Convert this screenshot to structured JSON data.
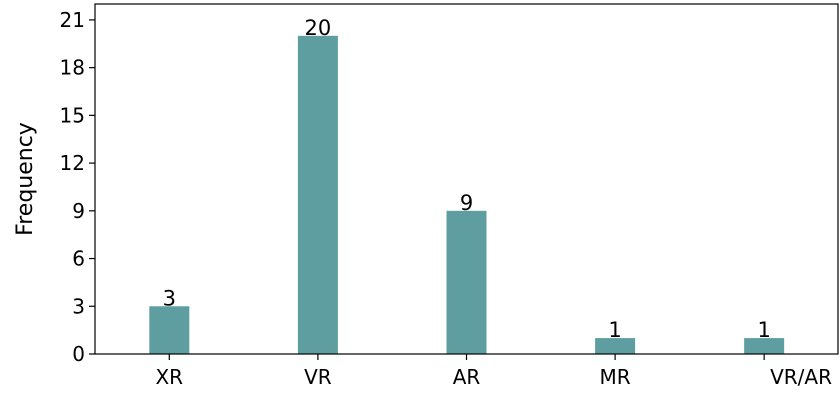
{
  "chart_data": {
    "type": "bar",
    "categories": [
      "XR",
      "VR",
      "AR",
      "MR",
      "VR/AR"
    ],
    "values": [
      3,
      20,
      9,
      1,
      1
    ],
    "title": "",
    "xlabel": "",
    "ylabel": "Frequency",
    "ylim": [
      0,
      22
    ],
    "yticks": [
      0,
      3,
      6,
      9,
      12,
      15,
      18,
      21
    ],
    "bar_color": "#5f9ea0",
    "grid": false,
    "data_labels": true
  }
}
